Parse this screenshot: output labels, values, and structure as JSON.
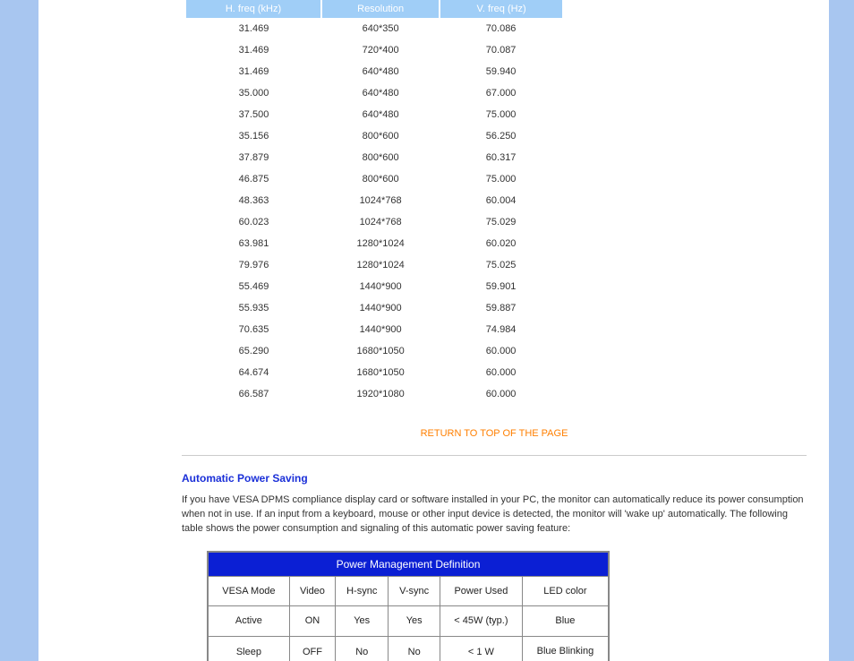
{
  "timing_table": {
    "headers": [
      "H. freq (kHz)",
      "Resolution",
      "V. freq (Hz)"
    ],
    "header_bg": "#a0cef7",
    "header_fg": "#ffffff",
    "rows": [
      [
        "31.469",
        "640*350",
        "70.086"
      ],
      [
        "31.469",
        "720*400",
        "70.087"
      ],
      [
        "31.469",
        "640*480",
        "59.940"
      ],
      [
        "35.000",
        "640*480",
        "67.000"
      ],
      [
        "37.500",
        "640*480",
        "75.000"
      ],
      [
        "35.156",
        "800*600",
        "56.250"
      ],
      [
        "37.879",
        "800*600",
        "60.317"
      ],
      [
        "46.875",
        "800*600",
        "75.000"
      ],
      [
        "48.363",
        "1024*768",
        "60.004"
      ],
      [
        "60.023",
        "1024*768",
        "75.029"
      ],
      [
        "63.981",
        "1280*1024",
        "60.020"
      ],
      [
        "79.976",
        "1280*1024",
        "75.025"
      ],
      [
        "55.469",
        "1440*900",
        "59.901"
      ],
      [
        "55.935",
        "1440*900",
        "59.887"
      ],
      [
        "70.635",
        "1440*900",
        "74.984"
      ],
      [
        "65.290",
        "1680*1050",
        "60.000"
      ],
      [
        "64.674",
        "1680*1050",
        "60.000"
      ],
      [
        "66.587",
        "1920*1080",
        "60.000"
      ]
    ]
  },
  "return_link": "RETURN TO TOP OF THE PAGE",
  "aps": {
    "heading": "Automatic Power Saving",
    "paragraph": "If you have VESA DPMS compliance display card or software installed in your PC, the monitor can automatically reduce its power consumption when not in use. If an input from a keyboard, mouse or other input device is detected, the monitor will 'wake up' automatically. The following table shows the power consumption and signaling of this automatic power saving feature:"
  },
  "power_table": {
    "title": "Power Management Definition",
    "title_bg": "#0b1fd4",
    "headers": [
      "VESA Mode",
      "Video",
      "H-sync",
      "V-sync",
      "Power Used",
      "LED color"
    ],
    "rows": [
      [
        "Active",
        "ON",
        "Yes",
        "Yes",
        "< 45W (typ.)",
        "Blue"
      ],
      [
        "Sleep",
        "OFF",
        "No",
        "No",
        "< 1 W",
        "Blue Blinking"
      ]
    ]
  },
  "colors": {
    "side_rail": "#a8c6f0",
    "link_orange": "#ff7f00",
    "heading_blue": "#1a2fd8"
  }
}
